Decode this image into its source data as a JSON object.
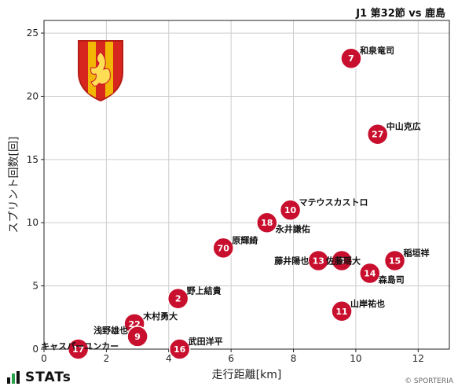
{
  "header": {
    "title": "J1 第32節 vs 鹿島"
  },
  "footer": {
    "brand": "STATs",
    "credit": "© SPORTERIA"
  },
  "colors": {
    "marker": "#c8102e",
    "grid": "#cccccc",
    "crest_yellow": "#f2b705",
    "crest_red": "#d7261e"
  },
  "icons": {
    "brand": "bar-chart-icon",
    "crest": "club-crest-icon"
  },
  "chart_data": {
    "type": "scatter",
    "xlabel": "走行距離[km]",
    "ylabel": "スプリント回数[回]",
    "xlim": [
      0,
      13
    ],
    "ylim": [
      0,
      26
    ],
    "xticks": [
      0,
      2,
      4,
      6,
      8,
      10,
      12
    ],
    "yticks": [
      0,
      5,
      10,
      15,
      20,
      25
    ],
    "grid": true,
    "points": [
      {
        "number": "7",
        "name": "和泉竜司",
        "x": 9.85,
        "y": 23,
        "label_pos": "right-top"
      },
      {
        "number": "27",
        "name": "中山克広",
        "x": 10.7,
        "y": 17,
        "label_pos": "right-top"
      },
      {
        "number": "10",
        "name": "マテウスカストロ",
        "x": 7.9,
        "y": 11,
        "label_pos": "right-top"
      },
      {
        "number": "18",
        "name": "永井謙佑",
        "x": 7.15,
        "y": 10,
        "label_pos": "right-bottom"
      },
      {
        "number": "70",
        "name": "原輝綺",
        "x": 5.75,
        "y": 8,
        "label_pos": "right-top"
      },
      {
        "number": "13",
        "name": "藤井陽也",
        "x": 8.8,
        "y": 7,
        "label_pos": "left-bottom"
      },
      {
        "number": "3",
        "name": "佐藤瑶大",
        "x": 9.55,
        "y": 7,
        "label_pos": "center-bottom"
      },
      {
        "number": "15",
        "name": "稲垣祥",
        "x": 11.25,
        "y": 7,
        "label_pos": "right-top"
      },
      {
        "number": "14",
        "name": "森島司",
        "x": 10.45,
        "y": 6,
        "label_pos": "right-bottom"
      },
      {
        "number": "2",
        "name": "野上結貴",
        "x": 4.3,
        "y": 4,
        "label_pos": "right-top"
      },
      {
        "number": "11",
        "name": "山岸祐也",
        "x": 9.55,
        "y": 3,
        "label_pos": "right-top"
      },
      {
        "number": "22",
        "name": "木村勇大",
        "x": 2.9,
        "y": 2,
        "label_pos": "right-top"
      },
      {
        "number": "9",
        "name": "浅野雄也",
        "x": 3.0,
        "y": 1,
        "label_pos": "left-top"
      },
      {
        "number": "17",
        "name": "キャスパーユンカー",
        "x": 1.1,
        "y": 0,
        "label_pos": "center-top"
      },
      {
        "number": "16",
        "name": "武田洋平",
        "x": 4.35,
        "y": 0,
        "label_pos": "right-top"
      }
    ]
  }
}
